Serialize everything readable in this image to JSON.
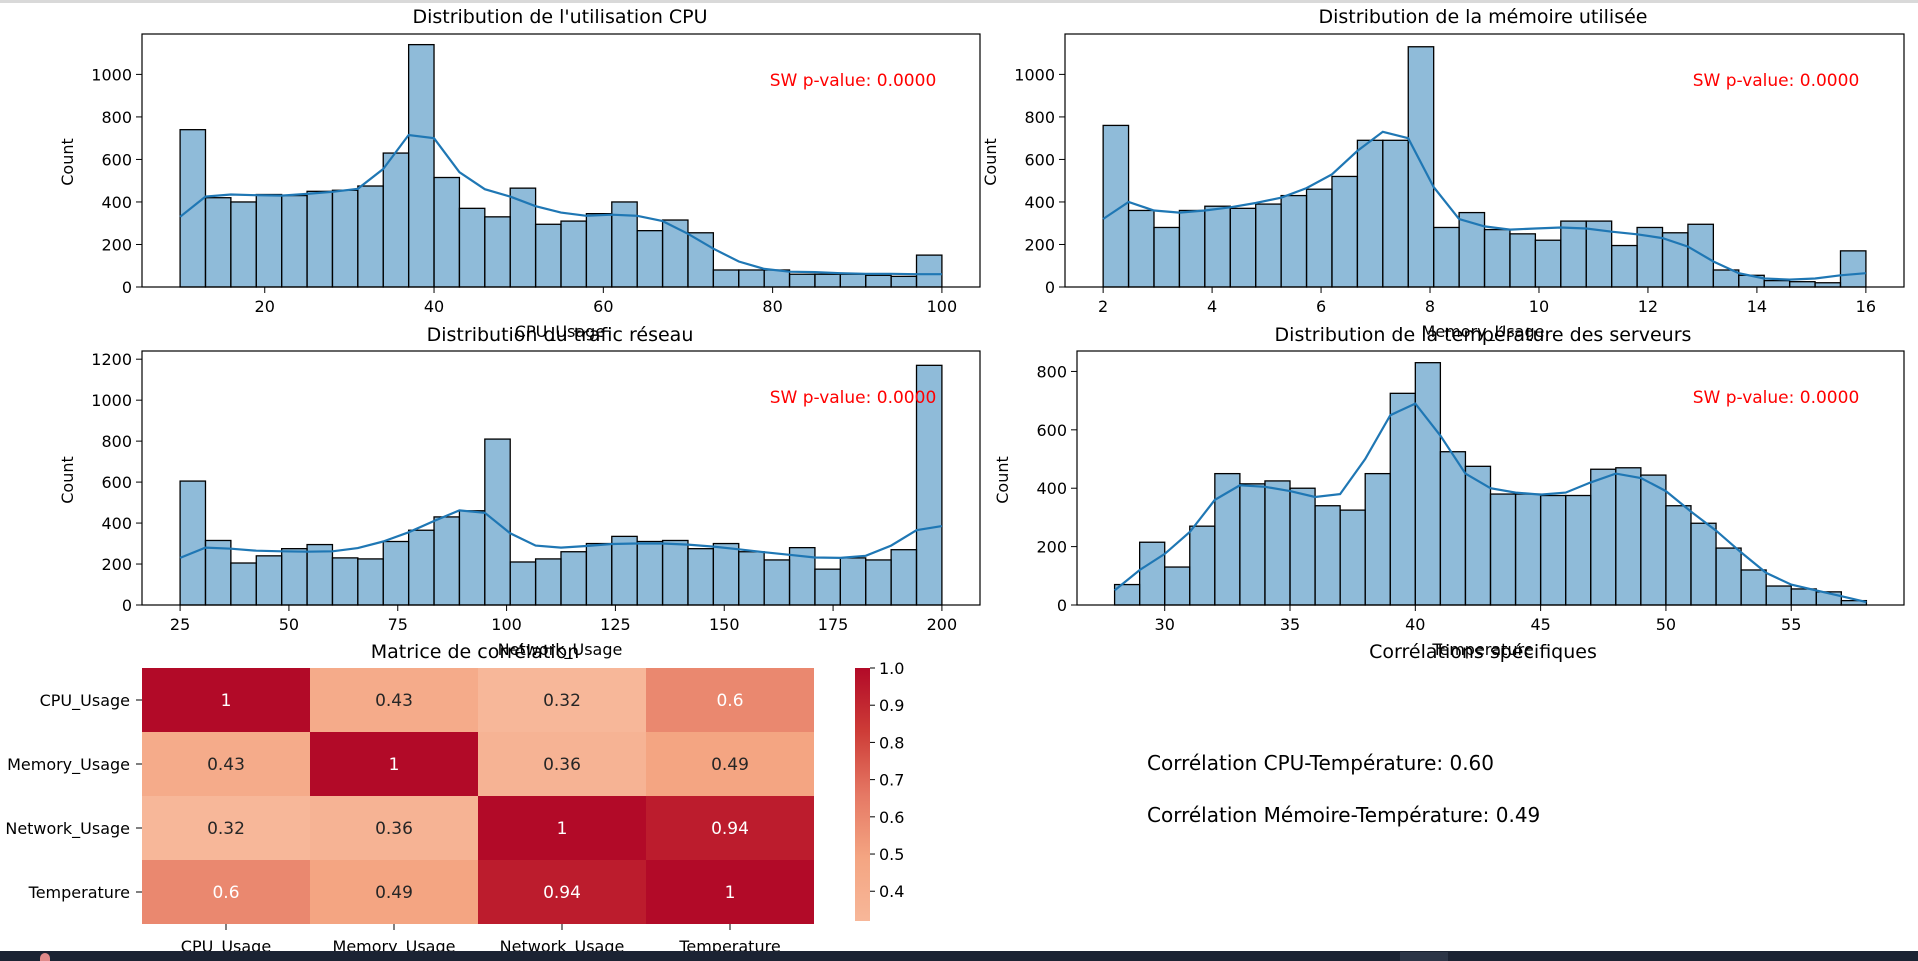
{
  "histograms": [
    {
      "title": "Distribution de l'utilisation CPU",
      "xlabel": "CPU_Usage",
      "ylabel": "Count",
      "annotation": "SW p-value: 0.0000"
    },
    {
      "title": "Distribution de la mémoire utilisée",
      "xlabel": "Memory_Usage",
      "ylabel": "Count",
      "annotation": "SW p-value: 0.0000"
    },
    {
      "title": "Distribution du trafic réseau",
      "xlabel": "Network_Usage",
      "ylabel": "Count",
      "annotation": "SW p-value: 0.0000"
    },
    {
      "title": "Distribution de la température des serveurs",
      "xlabel": "Temperature",
      "ylabel": "Count",
      "annotation": "SW p-value: 0.0000"
    }
  ],
  "heatmap": {
    "title": "Matrice de corrélation"
  },
  "correlations": {
    "title": "Corrélations spécifiques",
    "lines": [
      "Corrélation CPU-Température: 0.60",
      "Corrélation Mémoire-Température: 0.49"
    ]
  },
  "chart_data": [
    {
      "type": "bar",
      "title": "Distribution de l'utilisation CPU",
      "xlabel": "CPU_Usage",
      "ylabel": "Count",
      "xlim": [
        5.5,
        104.5
      ],
      "ylim": [
        0,
        1190
      ],
      "xticks": [
        20,
        40,
        60,
        80,
        100
      ],
      "yticks": [
        0,
        200,
        400,
        600,
        800,
        1000
      ],
      "bin_start": 10,
      "bin_width": 3,
      "values": [
        740,
        420,
        400,
        435,
        430,
        450,
        455,
        475,
        630,
        1140,
        515,
        370,
        330,
        465,
        295,
        310,
        345,
        400,
        265,
        315,
        255,
        80,
        80,
        80,
        60,
        60,
        60,
        55,
        50,
        150
      ],
      "kde": [
        330,
        425,
        435,
        432,
        430,
        438,
        448,
        462,
        555,
        715,
        700,
        540,
        460,
        425,
        380,
        350,
        335,
        340,
        335,
        310,
        250,
        180,
        120,
        85,
        72,
        70,
        65,
        62,
        62,
        60,
        60
      ],
      "color": "#1f77b4",
      "annotation_color": "#ff0000"
    },
    {
      "type": "bar",
      "title": "Distribution de la mémoire utilisée",
      "xlabel": "Memory_Usage",
      "ylabel": "Count",
      "xlim": [
        1.3,
        16.7
      ],
      "ylim": [
        0,
        1190
      ],
      "xticks": [
        2,
        4,
        6,
        8,
        10,
        12,
        14,
        16
      ],
      "yticks": [
        0,
        200,
        400,
        600,
        800,
        1000
      ],
      "bin_start": 2,
      "bin_width": 0.4667,
      "values": [
        760,
        360,
        280,
        360,
        380,
        370,
        390,
        430,
        460,
        520,
        690,
        690,
        1130,
        280,
        350,
        270,
        250,
        220,
        310,
        310,
        195,
        280,
        255,
        295,
        80,
        55,
        30,
        25,
        20,
        170
      ],
      "kde": [
        320,
        400,
        360,
        350,
        360,
        375,
        395,
        420,
        465,
        530,
        640,
        730,
        700,
        470,
        320,
        285,
        270,
        275,
        280,
        275,
        260,
        248,
        230,
        190,
        120,
        65,
        40,
        35,
        40,
        55,
        65
      ],
      "color": "#1f77b4",
      "annotation_color": "#ff0000"
    },
    {
      "type": "bar",
      "title": "Distribution du trafic réseau",
      "xlabel": "Network_Usage",
      "ylabel": "Count",
      "xlim": [
        16.25,
        208.75
      ],
      "ylim": [
        0,
        1240
      ],
      "xticks": [
        25,
        50,
        75,
        100,
        125,
        150,
        175,
        200
      ],
      "yticks": [
        0,
        200,
        400,
        600,
        800,
        1000,
        1200
      ],
      "bin_start": 25,
      "bin_width": 5.8333,
      "values": [
        605,
        315,
        205,
        240,
        275,
        295,
        230,
        225,
        310,
        365,
        430,
        460,
        810,
        210,
        225,
        260,
        300,
        335,
        310,
        315,
        275,
        300,
        260,
        220,
        280,
        175,
        230,
        220,
        270,
        1170
      ],
      "kde": [
        230,
        280,
        275,
        265,
        262,
        260,
        262,
        278,
        310,
        355,
        410,
        462,
        450,
        350,
        290,
        280,
        288,
        298,
        300,
        300,
        295,
        285,
        272,
        258,
        245,
        232,
        230,
        240,
        290,
        365,
        385
      ],
      "color": "#1f77b4",
      "annotation_color": "#ff0000"
    },
    {
      "type": "bar",
      "title": "Distribution de la température des serveurs",
      "xlabel": "Temperature",
      "ylabel": "Count",
      "xlim": [
        26.5,
        59.5
      ],
      "ylim": [
        0,
        870
      ],
      "xticks": [
        30,
        35,
        40,
        45,
        50,
        55
      ],
      "yticks": [
        0,
        200,
        400,
        600,
        800
      ],
      "bin_start": 28,
      "bin_width": 1,
      "values": [
        70,
        215,
        130,
        270,
        450,
        415,
        425,
        400,
        340,
        325,
        450,
        725,
        830,
        525,
        475,
        380,
        380,
        375,
        375,
        465,
        470,
        445,
        340,
        280,
        195,
        120,
        65,
        55,
        45,
        15
      ],
      "kde": [
        50,
        120,
        175,
        250,
        360,
        410,
        405,
        390,
        370,
        380,
        500,
        650,
        690,
        580,
        450,
        400,
        385,
        378,
        385,
        420,
        450,
        435,
        390,
        320,
        255,
        180,
        110,
        70,
        50,
        30,
        10
      ],
      "color": "#1f77b4",
      "annotation_color": "#ff0000"
    },
    {
      "type": "heatmap",
      "title": "Matrice de corrélation",
      "labels": [
        "CPU_Usage",
        "Memory_Usage",
        "Network_Usage",
        "Temperature"
      ],
      "matrix": [
        [
          1,
          0.43,
          0.32,
          0.6
        ],
        [
          0.43,
          1,
          0.36,
          0.49
        ],
        [
          0.32,
          0.36,
          1,
          0.94
        ],
        [
          0.6,
          0.49,
          0.94,
          1
        ]
      ],
      "colorbar_ticks": [
        0.4,
        0.5,
        0.6,
        0.7,
        0.8,
        0.9,
        1.0
      ],
      "vmin": 0.32,
      "vmax": 1.0,
      "colormap": "coolwarm"
    }
  ]
}
